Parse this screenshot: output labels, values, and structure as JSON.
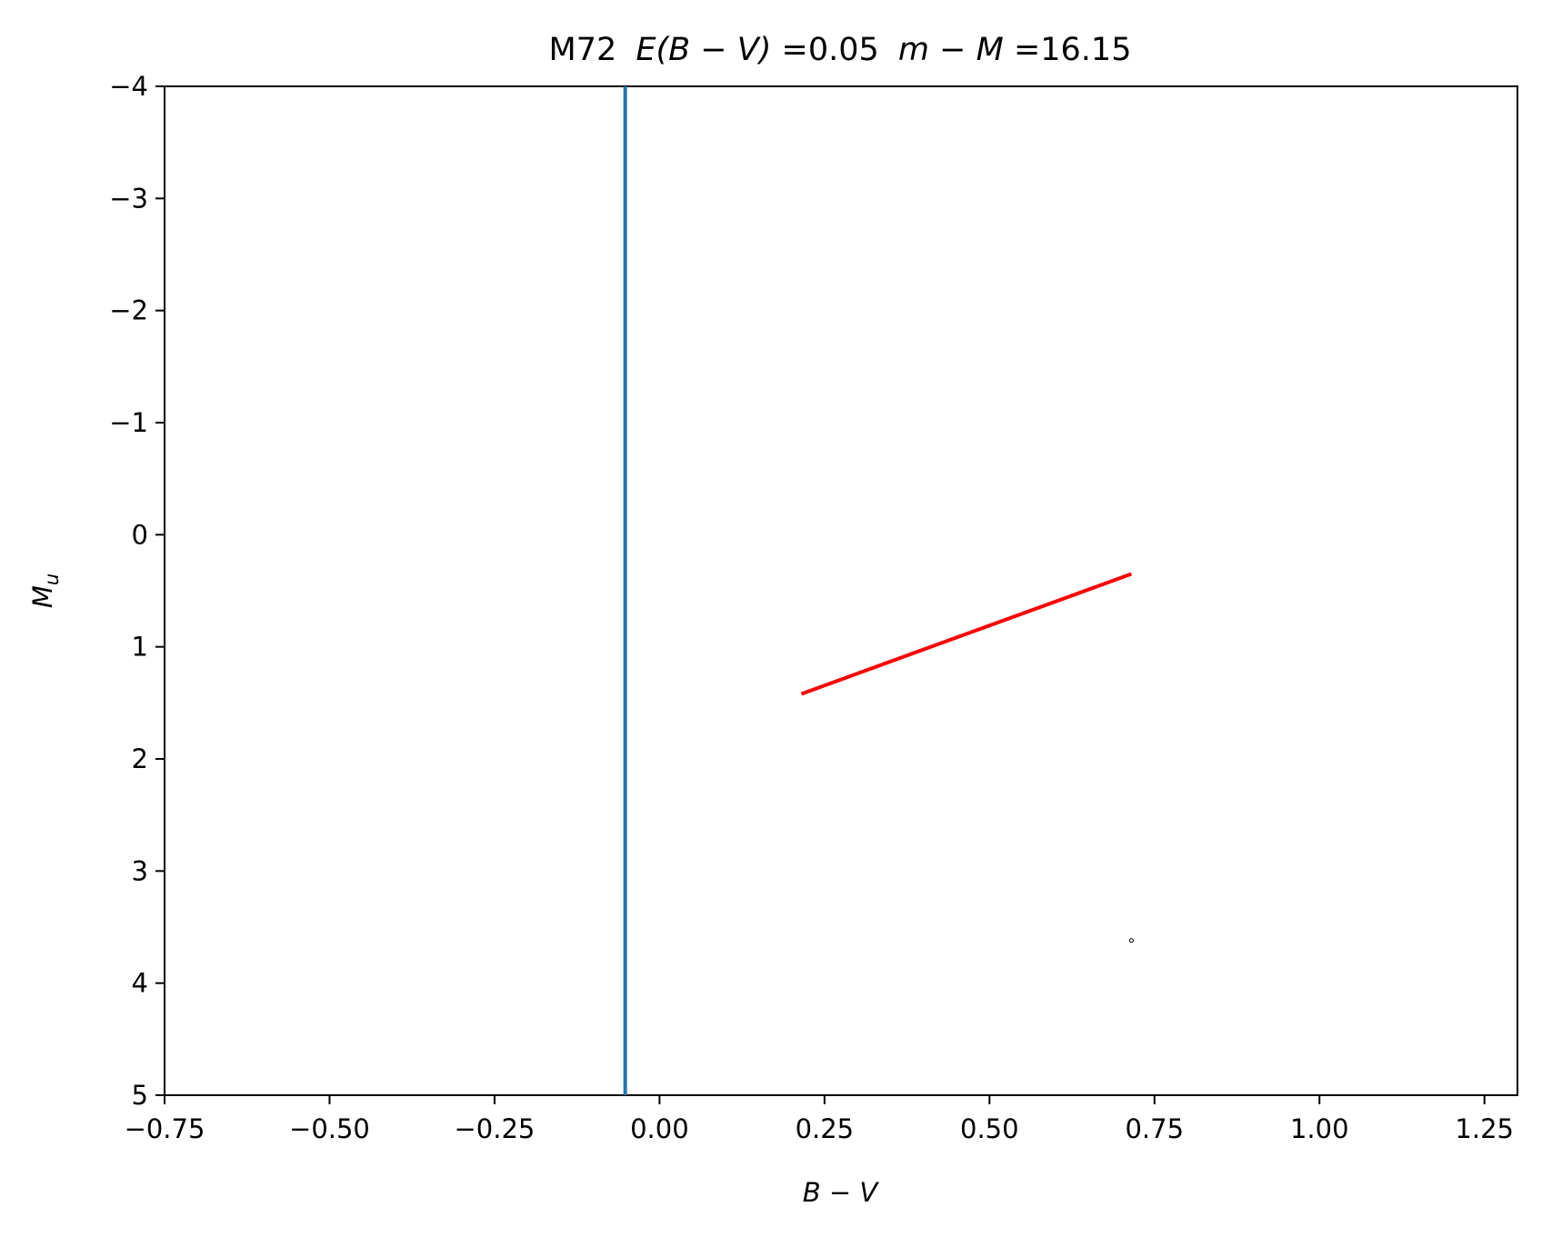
{
  "chart_data": {
    "type": "line",
    "title": "M72 E(B − V)=0.05 m − M=16.15",
    "title_parts": {
      "name": "M72",
      "e_label": "E(B − V)",
      "e_value": "=0.05",
      "dm_label": "m − M",
      "dm_value": "=16.15"
    },
    "xlabel": "B − V",
    "ylabel": "M",
    "ylabel_sub": "u",
    "xlim": [
      -0.75,
      1.3
    ],
    "ylim": [
      5,
      -4
    ],
    "y_inverted": true,
    "grid": false,
    "xticks": [
      -0.75,
      -0.5,
      -0.25,
      0.0,
      0.25,
      0.5,
      0.75,
      1.0,
      1.25
    ],
    "xtick_labels": [
      "−0.75",
      "−0.50",
      "−0.25",
      "0.00",
      "0.25",
      "0.50",
      "0.75",
      "1.00",
      "1.25"
    ],
    "yticks": [
      -4,
      -3,
      -2,
      -1,
      0,
      1,
      2,
      3,
      4,
      5
    ],
    "ytick_labels": [
      "−4",
      "−3",
      "−2",
      "−1",
      "0",
      "1",
      "2",
      "3",
      "4",
      "5"
    ],
    "series": [
      {
        "color": "#1f77b4",
        "style": "line",
        "x": [
          -0.052,
          -0.052
        ],
        "y": [
          -4,
          5
        ]
      },
      {
        "color": "#ff0000",
        "style": "line",
        "x": [
          0.215,
          0.715
        ],
        "y": [
          1.42,
          0.35
        ]
      },
      {
        "color": "#000000",
        "style": "point",
        "x": [
          0.715
        ],
        "y": [
          3.62
        ]
      }
    ]
  }
}
